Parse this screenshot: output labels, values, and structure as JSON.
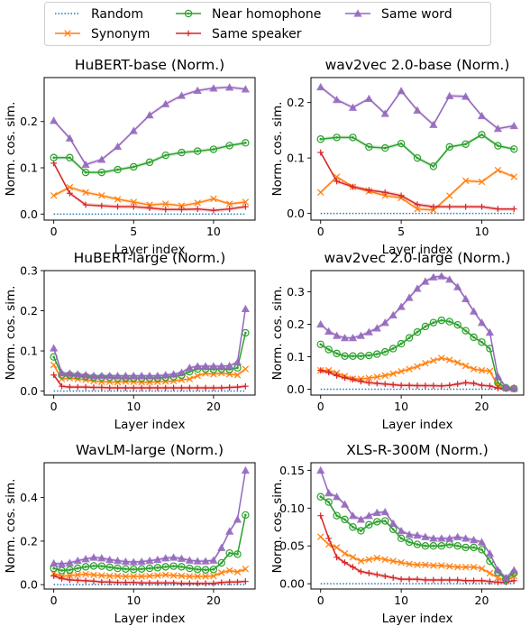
{
  "legend": {
    "entries": [
      {
        "key": "random",
        "label": "Random",
        "color": "#1f77b4",
        "style": "dotted",
        "marker": "none"
      },
      {
        "key": "synonym",
        "label": "Synonym",
        "color": "#ff7f0e",
        "style": "solid",
        "marker": "x"
      },
      {
        "key": "near",
        "label": "Near homophone",
        "color": "#2ca02c",
        "style": "solid",
        "marker": "circle"
      },
      {
        "key": "speaker",
        "label": "Same speaker",
        "color": "#d62728",
        "style": "solid",
        "marker": "plus"
      },
      {
        "key": "word",
        "label": "Same word",
        "color": "#9467bd",
        "style": "solid",
        "marker": "triangle"
      }
    ]
  },
  "chart_data": [
    {
      "type": "line",
      "title": "HuBERT-base (Norm.)",
      "xlabel": "Layer index",
      "ylabel": "Norm. cos. sim.",
      "xlim": [
        -0.6,
        12.6
      ],
      "ylim": [
        -0.013,
        0.295
      ],
      "xticks": [
        0,
        5,
        10
      ],
      "yticks": [
        0.0,
        0.1,
        0.2
      ],
      "ytick_labels": [
        "0.0",
        "0.1",
        "0.2"
      ],
      "x": [
        0,
        1,
        2,
        3,
        4,
        5,
        6,
        7,
        8,
        9,
        10,
        11,
        12
      ],
      "series": [
        {
          "key": "random",
          "values": [
            0,
            0,
            0,
            0,
            0,
            0,
            0,
            0,
            0,
            0,
            0,
            0,
            0
          ]
        },
        {
          "key": "synonym",
          "values": [
            0.04,
            0.058,
            0.047,
            0.04,
            0.032,
            0.026,
            0.02,
            0.022,
            0.018,
            0.024,
            0.033,
            0.022,
            0.026
          ]
        },
        {
          "key": "near",
          "values": [
            0.122,
            0.122,
            0.09,
            0.09,
            0.096,
            0.102,
            0.112,
            0.127,
            0.133,
            0.136,
            0.14,
            0.148,
            0.154
          ]
        },
        {
          "key": "speaker",
          "values": [
            0.11,
            0.045,
            0.02,
            0.018,
            0.016,
            0.016,
            0.013,
            0.01,
            0.01,
            0.011,
            0.008,
            0.011,
            0.016
          ]
        },
        {
          "key": "word",
          "values": [
            0.202,
            0.164,
            0.107,
            0.118,
            0.146,
            0.18,
            0.214,
            0.238,
            0.256,
            0.267,
            0.272,
            0.274,
            0.27
          ]
        }
      ]
    },
    {
      "type": "line",
      "title": "wav2vec 2.0-base (Norm.)",
      "xlabel": "Layer index",
      "ylabel": "Norm. cos. sim.",
      "xlim": [
        -0.6,
        12.6
      ],
      "ylim": [
        -0.012,
        0.245
      ],
      "xticks": [
        0,
        5,
        10
      ],
      "yticks": [
        0.0,
        0.1,
        0.2
      ],
      "ytick_labels": [
        "0.0",
        "0.1",
        "0.2"
      ],
      "x": [
        0,
        1,
        2,
        3,
        4,
        5,
        6,
        7,
        8,
        9,
        10,
        11,
        12
      ],
      "series": [
        {
          "key": "random",
          "values": [
            0,
            0,
            0,
            0,
            0,
            0,
            0,
            0,
            0,
            0,
            0,
            0,
            0
          ]
        },
        {
          "key": "synonym",
          "values": [
            0.038,
            0.066,
            0.048,
            0.04,
            0.032,
            0.028,
            0.008,
            0.006,
            0.032,
            0.059,
            0.057,
            0.078,
            0.066
          ]
        },
        {
          "key": "near",
          "values": [
            0.134,
            0.137,
            0.137,
            0.12,
            0.118,
            0.126,
            0.1,
            0.085,
            0.12,
            0.125,
            0.142,
            0.122,
            0.116
          ]
        },
        {
          "key": "speaker",
          "values": [
            0.11,
            0.058,
            0.048,
            0.042,
            0.038,
            0.032,
            0.016,
            0.012,
            0.012,
            0.012,
            0.012,
            0.008,
            0.008
          ]
        },
        {
          "key": "word",
          "values": [
            0.228,
            0.205,
            0.191,
            0.207,
            0.18,
            0.221,
            0.186,
            0.16,
            0.212,
            0.211,
            0.176,
            0.153,
            0.158
          ]
        }
      ]
    },
    {
      "type": "line",
      "title": "HuBERT-large (Norm.)",
      "xlabel": "Layer index",
      "ylabel": "Norm. cos. sim.",
      "xlim": [
        -1.2,
        25.2
      ],
      "ylim": [
        -0.01,
        0.3
      ],
      "xticks": [
        0,
        10,
        20
      ],
      "yticks": [
        0.0,
        0.1,
        0.2,
        0.3
      ],
      "ytick_labels": [
        "0.0",
        "0.1",
        "0.2",
        "0.3"
      ],
      "x": [
        0,
        1,
        2,
        3,
        4,
        5,
        6,
        7,
        8,
        9,
        10,
        11,
        12,
        13,
        14,
        15,
        16,
        17,
        18,
        19,
        20,
        21,
        22,
        23,
        24
      ],
      "series": [
        {
          "key": "random",
          "values": [
            0,
            0,
            0,
            0,
            0,
            0,
            0,
            0,
            0,
            0,
            0,
            0,
            0,
            0,
            0,
            0,
            0,
            0,
            0,
            0,
            0,
            0,
            0,
            0,
            0
          ]
        },
        {
          "key": "synonym",
          "values": [
            0.065,
            0.03,
            0.032,
            0.03,
            0.028,
            0.025,
            0.023,
            0.023,
            0.022,
            0.024,
            0.023,
            0.022,
            0.022,
            0.023,
            0.024,
            0.025,
            0.028,
            0.03,
            0.038,
            0.044,
            0.042,
            0.045,
            0.042,
            0.04,
            0.055
          ]
        },
        {
          "key": "near",
          "values": [
            0.085,
            0.04,
            0.04,
            0.038,
            0.036,
            0.034,
            0.034,
            0.034,
            0.032,
            0.032,
            0.032,
            0.032,
            0.032,
            0.032,
            0.034,
            0.036,
            0.04,
            0.048,
            0.055,
            0.055,
            0.054,
            0.055,
            0.054,
            0.058,
            0.145
          ]
        },
        {
          "key": "speaker",
          "values": [
            0.04,
            0.012,
            0.01,
            0.01,
            0.01,
            0.009,
            0.009,
            0.008,
            0.008,
            0.008,
            0.008,
            0.008,
            0.008,
            0.008,
            0.008,
            0.008,
            0.008,
            0.008,
            0.008,
            0.008,
            0.008,
            0.008,
            0.009,
            0.01,
            0.012
          ]
        },
        {
          "key": "word",
          "values": [
            0.107,
            0.045,
            0.044,
            0.042,
            0.04,
            0.038,
            0.038,
            0.038,
            0.038,
            0.038,
            0.038,
            0.038,
            0.038,
            0.038,
            0.04,
            0.042,
            0.046,
            0.058,
            0.062,
            0.062,
            0.062,
            0.062,
            0.063,
            0.072,
            0.205
          ]
        }
      ]
    },
    {
      "type": "line",
      "title": "wav2vec 2.0-large (Norm.)",
      "xlabel": "Layer index",
      "ylabel": "Norm. cos. sim.",
      "xlim": [
        -1.2,
        25.2
      ],
      "ylim": [
        -0.018,
        0.365
      ],
      "xticks": [
        0,
        10,
        20
      ],
      "yticks": [
        0.0,
        0.1,
        0.2,
        0.3
      ],
      "ytick_labels": [
        "0.0",
        "0.1",
        "0.2",
        "0.3"
      ],
      "x": [
        0,
        1,
        2,
        3,
        4,
        5,
        6,
        7,
        8,
        9,
        10,
        11,
        12,
        13,
        14,
        15,
        16,
        17,
        18,
        19,
        20,
        21,
        22,
        23,
        24
      ],
      "series": [
        {
          "key": "random",
          "values": [
            0,
            0,
            0,
            0,
            0,
            0,
            0,
            0,
            0,
            0,
            0,
            0,
            0,
            0,
            0,
            0,
            0,
            0,
            0,
            0,
            0,
            0,
            0,
            0,
            0
          ]
        },
        {
          "key": "synonym",
          "values": [
            0.058,
            0.058,
            0.05,
            0.04,
            0.032,
            0.032,
            0.034,
            0.038,
            0.042,
            0.048,
            0.055,
            0.062,
            0.07,
            0.08,
            0.088,
            0.096,
            0.09,
            0.082,
            0.072,
            0.062,
            0.058,
            0.056,
            0.01,
            0.002,
            0.001
          ]
        },
        {
          "key": "near",
          "values": [
            0.138,
            0.122,
            0.11,
            0.102,
            0.102,
            0.102,
            0.104,
            0.108,
            0.115,
            0.125,
            0.14,
            0.158,
            0.176,
            0.193,
            0.205,
            0.212,
            0.208,
            0.198,
            0.18,
            0.16,
            0.145,
            0.125,
            0.02,
            0.004,
            0.002
          ]
        },
        {
          "key": "speaker",
          "values": [
            0.058,
            0.052,
            0.042,
            0.035,
            0.03,
            0.024,
            0.02,
            0.018,
            0.016,
            0.014,
            0.012,
            0.012,
            0.011,
            0.011,
            0.011,
            0.01,
            0.012,
            0.016,
            0.02,
            0.018,
            0.012,
            0.01,
            0.003,
            0.001,
            0.0
          ]
        },
        {
          "key": "word",
          "values": [
            0.2,
            0.178,
            0.165,
            0.158,
            0.158,
            0.165,
            0.176,
            0.188,
            0.205,
            0.228,
            0.254,
            0.282,
            0.31,
            0.332,
            0.345,
            0.348,
            0.338,
            0.315,
            0.278,
            0.24,
            0.205,
            0.175,
            0.04,
            0.006,
            0.004
          ]
        }
      ]
    },
    {
      "type": "line",
      "title": "WavLM-large (Norm.)",
      "xlabel": "Layer index",
      "ylabel": "Norm. cos. sim.",
      "xlim": [
        -1.2,
        25.2
      ],
      "ylim": [
        -0.02,
        0.56
      ],
      "xticks": [
        0,
        10,
        20
      ],
      "yticks": [
        0.0,
        0.2,
        0.4
      ],
      "ytick_labels": [
        "0.0",
        "0.2",
        "0.4"
      ],
      "x": [
        0,
        1,
        2,
        3,
        4,
        5,
        6,
        7,
        8,
        9,
        10,
        11,
        12,
        13,
        14,
        15,
        16,
        17,
        18,
        19,
        20,
        21,
        22,
        23,
        24
      ],
      "series": [
        {
          "key": "random",
          "values": [
            0,
            0,
            0,
            0,
            0,
            0,
            0,
            0,
            0,
            0,
            0,
            0,
            0,
            0,
            0,
            0,
            0,
            0,
            0,
            0,
            0,
            0,
            0,
            0,
            0
          ]
        },
        {
          "key": "synonym",
          "values": [
            0.052,
            0.038,
            0.042,
            0.045,
            0.048,
            0.045,
            0.042,
            0.04,
            0.04,
            0.038,
            0.038,
            0.038,
            0.04,
            0.042,
            0.045,
            0.042,
            0.04,
            0.038,
            0.038,
            0.038,
            0.04,
            0.055,
            0.065,
            0.058,
            0.072
          ]
        },
        {
          "key": "near",
          "values": [
            0.075,
            0.065,
            0.068,
            0.075,
            0.082,
            0.086,
            0.085,
            0.08,
            0.075,
            0.072,
            0.07,
            0.072,
            0.075,
            0.078,
            0.082,
            0.085,
            0.082,
            0.075,
            0.07,
            0.068,
            0.07,
            0.1,
            0.145,
            0.14,
            0.32
          ]
        },
        {
          "key": "speaker",
          "values": [
            0.04,
            0.028,
            0.022,
            0.02,
            0.018,
            0.016,
            0.012,
            0.012,
            0.01,
            0.01,
            0.01,
            0.008,
            0.008,
            0.008,
            0.008,
            0.008,
            0.006,
            0.006,
            0.006,
            0.006,
            0.006,
            0.01,
            0.012,
            0.012,
            0.015
          ]
        },
        {
          "key": "word",
          "values": [
            0.098,
            0.095,
            0.1,
            0.11,
            0.118,
            0.125,
            0.122,
            0.115,
            0.11,
            0.106,
            0.104,
            0.106,
            0.11,
            0.115,
            0.122,
            0.125,
            0.12,
            0.112,
            0.108,
            0.108,
            0.112,
            0.17,
            0.245,
            0.3,
            0.525
          ]
        }
      ]
    },
    {
      "type": "line",
      "title": "XLS-R-300M (Norm.)",
      "xlabel": "Layer index",
      "ylabel": "Norm. cos. sim.",
      "xlim": [
        -1.2,
        25.2
      ],
      "ylim": [
        -0.007,
        0.16
      ],
      "xticks": [
        0,
        10,
        20
      ],
      "yticks": [
        0.0,
        0.05,
        0.1,
        0.15
      ],
      "ytick_labels": [
        "0.00",
        "0.05",
        "0.10",
        "0.15"
      ],
      "x": [
        0,
        1,
        2,
        3,
        4,
        5,
        6,
        7,
        8,
        9,
        10,
        11,
        12,
        13,
        14,
        15,
        16,
        17,
        18,
        19,
        20,
        21,
        22,
        23,
        24
      ],
      "series": [
        {
          "key": "random",
          "values": [
            0,
            0,
            0,
            0,
            0,
            0,
            0,
            0,
            0,
            0,
            0,
            0,
            0,
            0,
            0,
            0,
            0,
            0,
            0,
            0,
            0,
            0,
            0,
            0,
            0
          ]
        },
        {
          "key": "synonym",
          "values": [
            0.062,
            0.052,
            0.048,
            0.04,
            0.035,
            0.03,
            0.032,
            0.034,
            0.032,
            0.03,
            0.028,
            0.026,
            0.025,
            0.025,
            0.024,
            0.024,
            0.023,
            0.022,
            0.022,
            0.022,
            0.02,
            0.014,
            0.008,
            0.004,
            0.01
          ]
        },
        {
          "key": "near",
          "values": [
            0.115,
            0.108,
            0.09,
            0.085,
            0.075,
            0.07,
            0.078,
            0.082,
            0.083,
            0.072,
            0.06,
            0.055,
            0.052,
            0.05,
            0.05,
            0.05,
            0.052,
            0.05,
            0.048,
            0.048,
            0.045,
            0.03,
            0.015,
            0.006,
            0.014
          ]
        },
        {
          "key": "speaker",
          "values": [
            0.09,
            0.06,
            0.035,
            0.028,
            0.022,
            0.016,
            0.014,
            0.012,
            0.01,
            0.008,
            0.006,
            0.006,
            0.006,
            0.005,
            0.005,
            0.005,
            0.005,
            0.005,
            0.004,
            0.004,
            0.004,
            0.003,
            0.002,
            0.002,
            0.004
          ]
        },
        {
          "key": "word",
          "values": [
            0.15,
            0.12,
            0.115,
            0.105,
            0.09,
            0.085,
            0.09,
            0.094,
            0.095,
            0.08,
            0.07,
            0.065,
            0.064,
            0.062,
            0.06,
            0.06,
            0.06,
            0.062,
            0.06,
            0.058,
            0.055,
            0.04,
            0.018,
            0.008,
            0.018
          ]
        }
      ]
    }
  ]
}
